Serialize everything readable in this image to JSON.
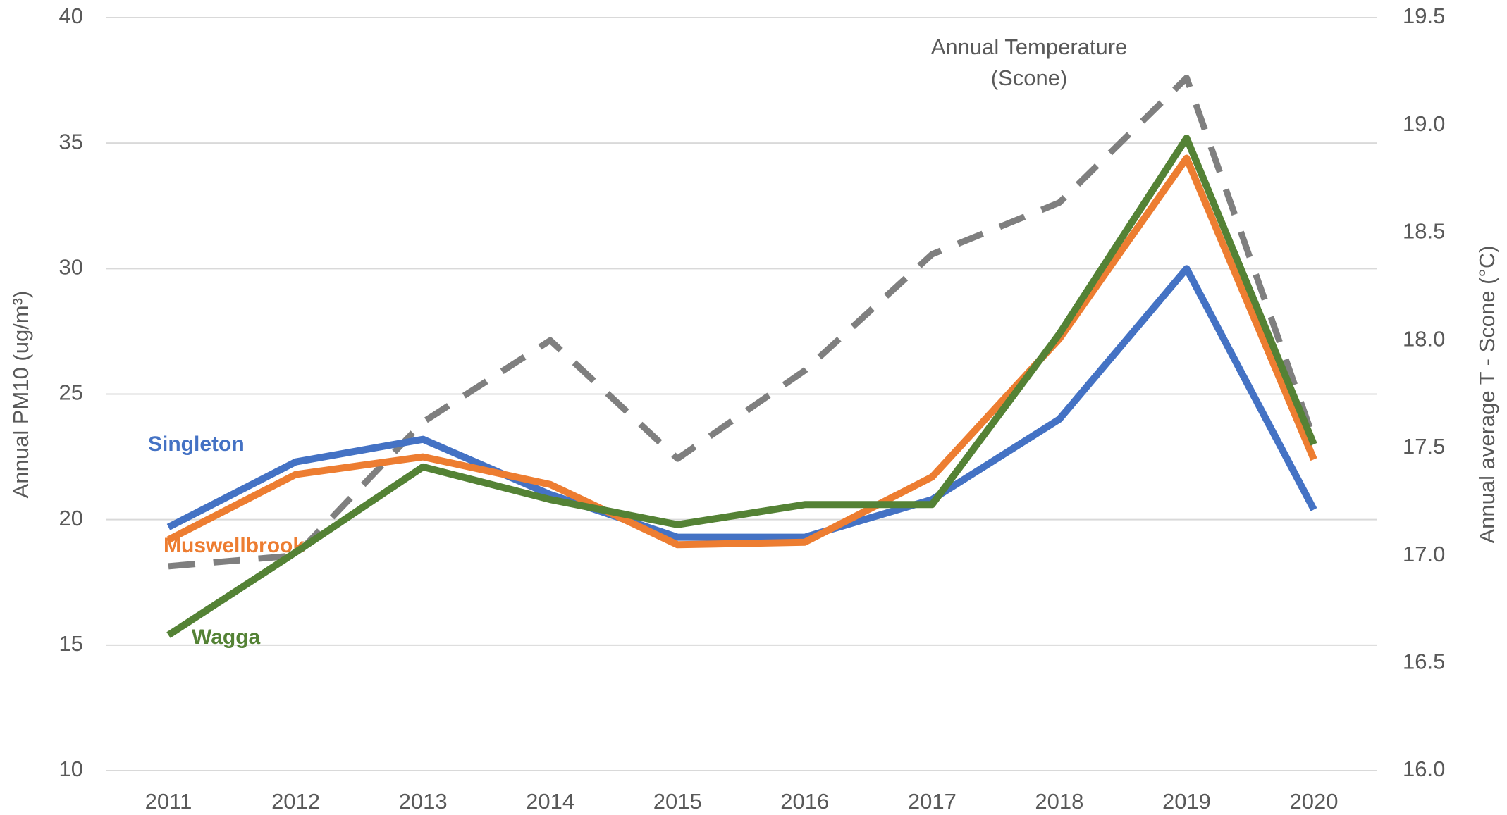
{
  "chart_data": {
    "type": "line",
    "categories": [
      "2011",
      "2012",
      "2013",
      "2014",
      "2015",
      "2016",
      "2017",
      "2018",
      "2019",
      "2020"
    ],
    "y_label": "Annual PM10 (ug/m³)",
    "y2_label": "Annual average T - Scone (°C)",
    "ylim": [
      10,
      40
    ],
    "yticks": [
      10,
      15,
      20,
      25,
      30,
      35,
      40
    ],
    "y2lim": [
      16,
      19.5
    ],
    "y2ticks": [
      {
        "value": 16,
        "label": "16.0"
      },
      16.5,
      {
        "value": 17,
        "label": "17.0"
      },
      17.5,
      {
        "value": 18,
        "label": "18.0"
      },
      18.5,
      {
        "value": 19,
        "label": "19.0"
      },
      19.5
    ],
    "grid": true,
    "series": [
      {
        "name": "Singleton",
        "color": "#4472c4",
        "values": [
          19.7,
          22.3,
          23.2,
          21.0,
          19.3,
          19.3,
          20.8,
          24.0,
          30.0,
          20.4
        ]
      },
      {
        "name": "Muswellbrook",
        "color": "#ed7d31",
        "values": [
          19.2,
          21.8,
          22.5,
          21.4,
          19.0,
          19.1,
          21.7,
          27.2,
          34.4,
          22.4
        ]
      },
      {
        "name": "Wagga",
        "color": "#548235",
        "values": [
          15.4,
          18.7,
          22.1,
          20.8,
          19.8,
          20.6,
          20.6,
          27.4,
          35.2,
          23.0
        ]
      },
      {
        "name": "Annual Temperature (Scone)",
        "color": "#7f7f7f",
        "dashed": true,
        "axis": "y2",
        "values": [
          16.95,
          17.0,
          17.62,
          18.0,
          17.45,
          17.86,
          18.4,
          18.64,
          19.22,
          17.54
        ]
      }
    ]
  }
}
